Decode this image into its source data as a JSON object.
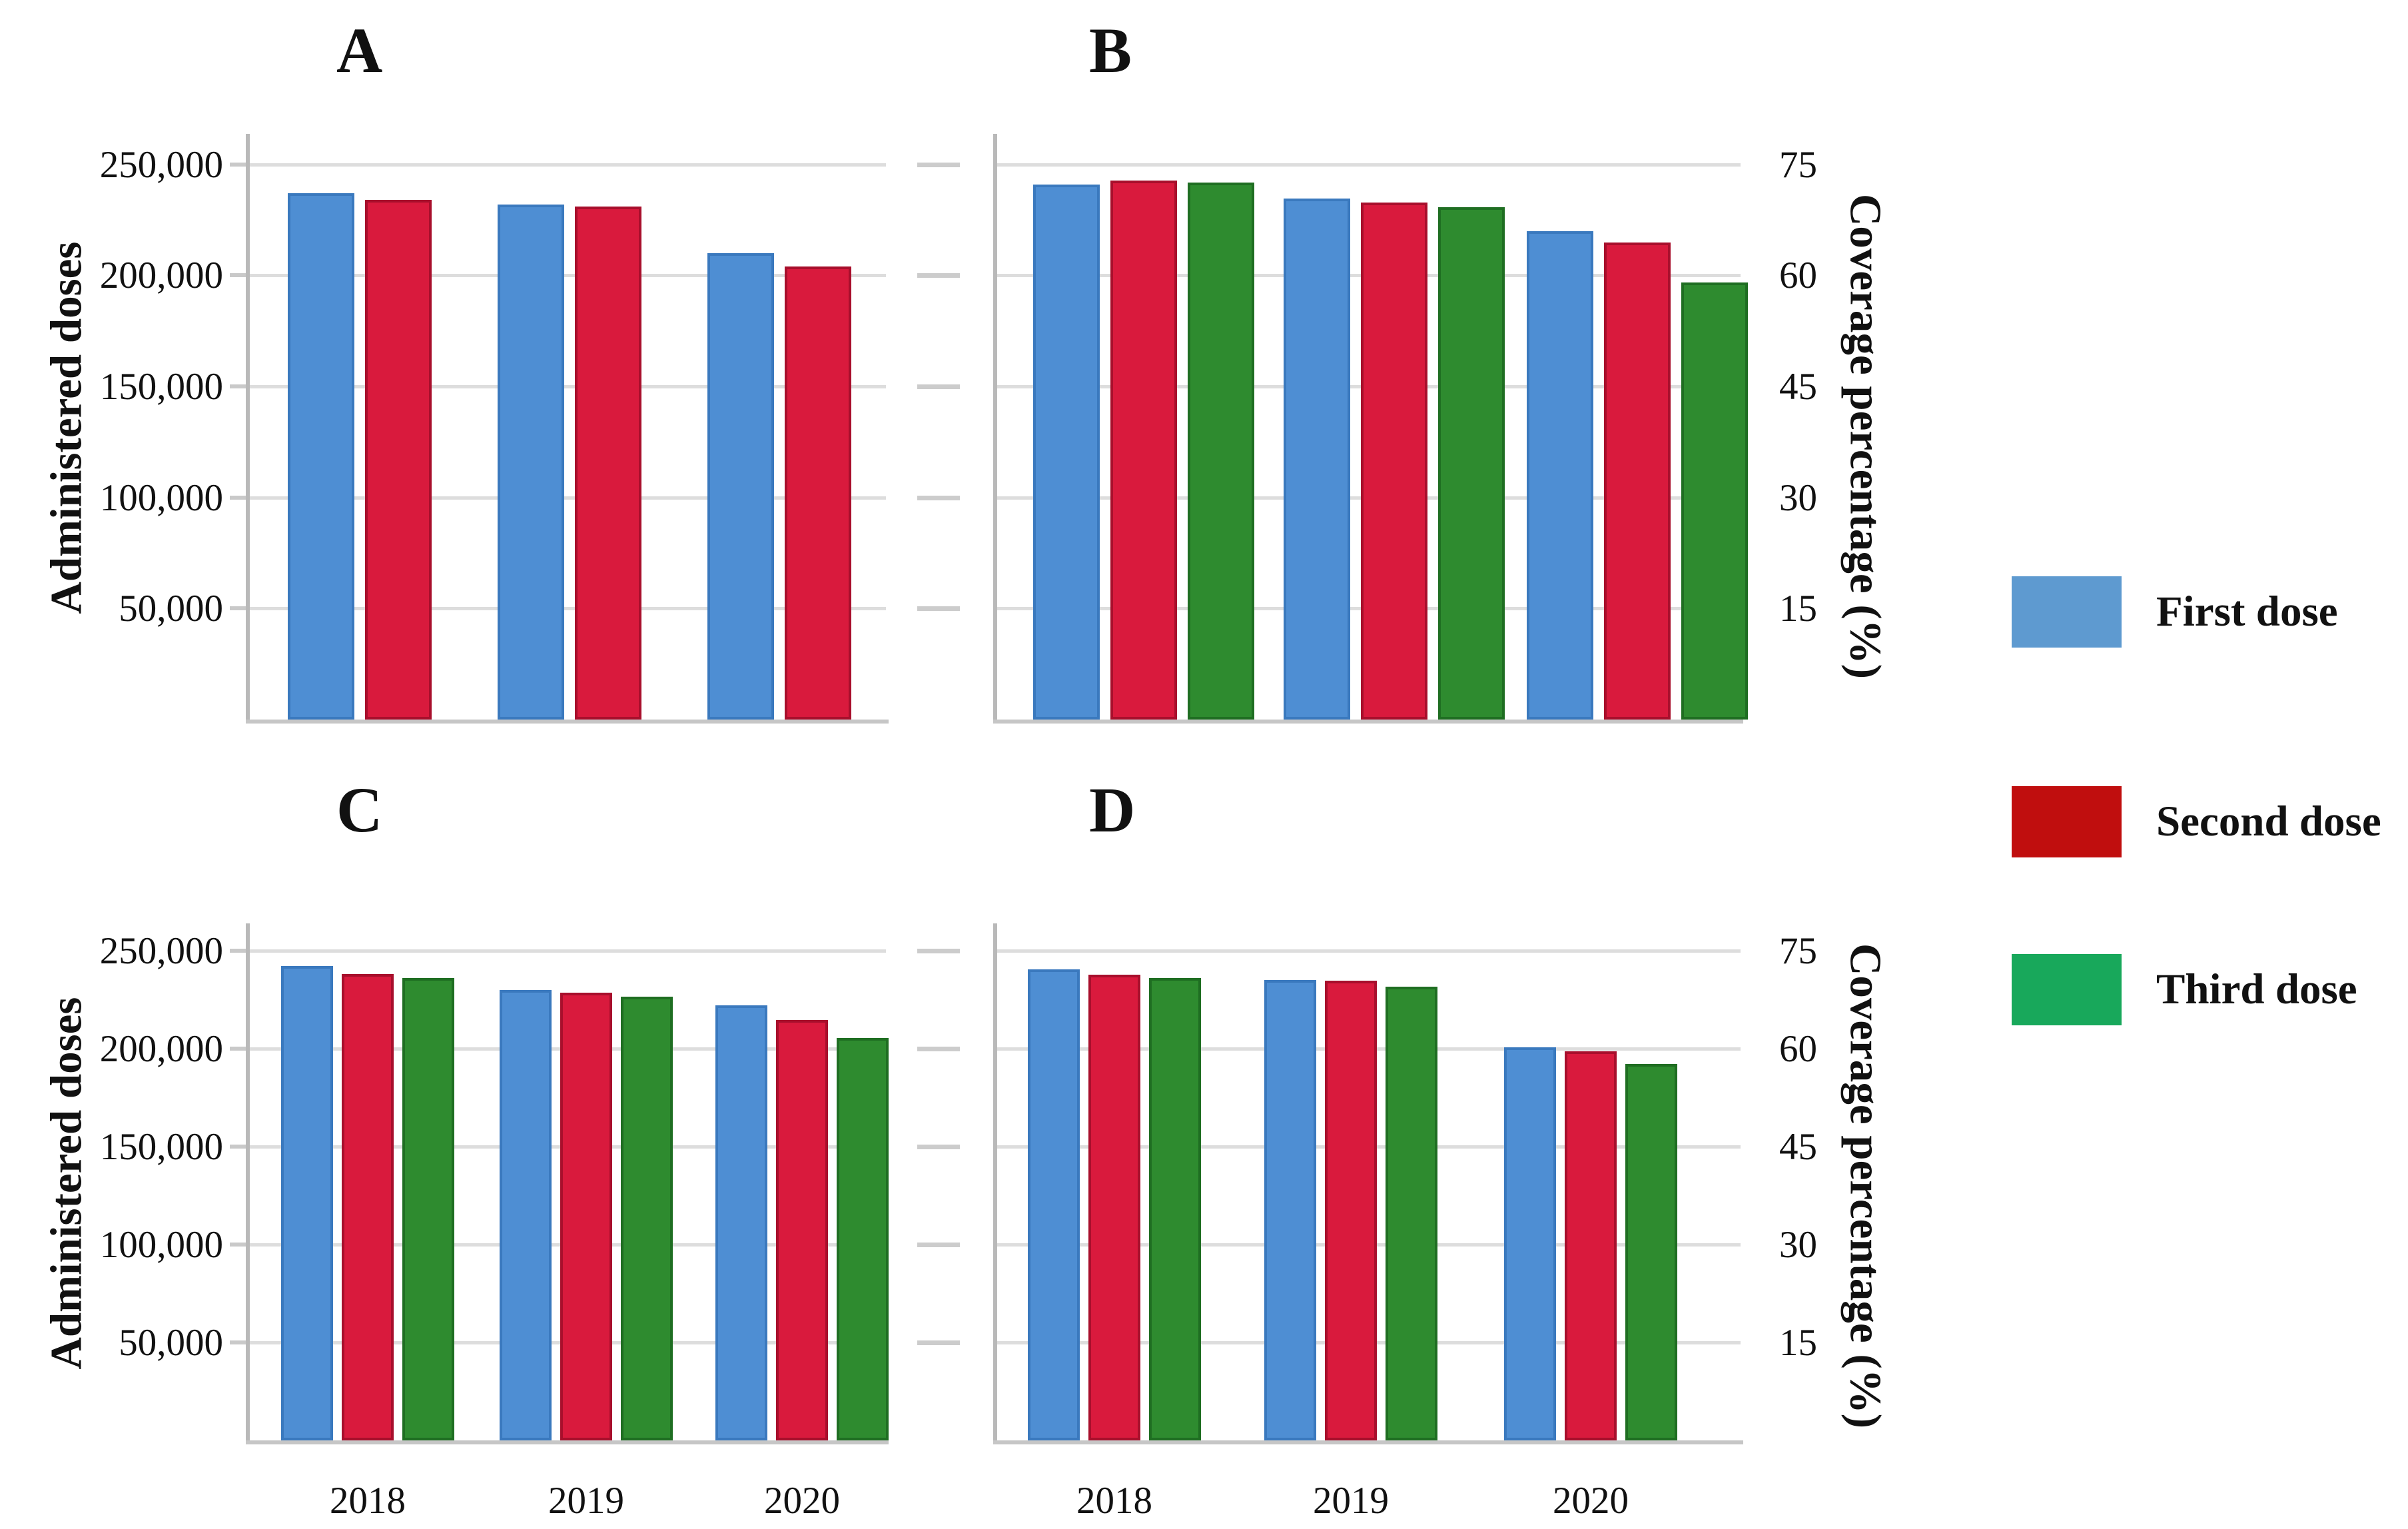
{
  "figure": {
    "background": "#ffffff"
  },
  "legend": {
    "items": [
      {
        "label": "First dose",
        "color": "#5E9AD0"
      },
      {
        "label": "Second dose",
        "color": "#C00E0E"
      },
      {
        "label": "Third dose",
        "color": "#18A85B"
      }
    ]
  },
  "chart_data": [
    {
      "id": "A",
      "type": "bar",
      "title": "A",
      "ylabel": "Administered doses",
      "axis_side": "left",
      "categories": [
        "2018",
        "2019",
        "2020"
      ],
      "show_x_labels": false,
      "grid": true,
      "ylim": [
        0,
        262500
      ],
      "yticks": [
        {
          "label": "250,000",
          "value": 250000
        },
        {
          "label": "200,000",
          "value": 200000
        },
        {
          "label": "150,000",
          "value": 150000
        },
        {
          "label": "100,000",
          "value": 100000
        },
        {
          "label": "50,000",
          "value": 50000
        }
      ],
      "series": [
        {
          "name": "First dose",
          "color": "#4E8ED3",
          "border": "#3A79BE",
          "values": [
            237000,
            232000,
            210000
          ]
        },
        {
          "name": "Second dose",
          "color": "#D91A3D",
          "border": "#A80F2C",
          "values": [
            234000,
            231000,
            204000
          ]
        }
      ]
    },
    {
      "id": "B",
      "type": "bar",
      "title": "B",
      "ylabel": "Coverage percentage (%)",
      "axis_side": "right",
      "categories": [
        "2018",
        "2019",
        "2020"
      ],
      "show_x_labels": false,
      "grid": true,
      "ylim": [
        0,
        78.75
      ],
      "yticks": [
        {
          "label": "75",
          "value": 75
        },
        {
          "label": "60",
          "value": 60
        },
        {
          "label": "45",
          "value": 45
        },
        {
          "label": "30",
          "value": 30
        },
        {
          "label": "15",
          "value": 15
        }
      ],
      "series": [
        {
          "name": "First dose",
          "color": "#4E8ED3",
          "border": "#3A79BE",
          "values": [
            72.3,
            70.4,
            66.0
          ]
        },
        {
          "name": "Second dose",
          "color": "#D91A3D",
          "border": "#A80F2C",
          "values": [
            72.8,
            69.8,
            64.4
          ]
        },
        {
          "name": "Third dose",
          "color": "#2E8B2F",
          "border": "#1F6E22",
          "values": [
            72.5,
            69.2,
            59.0
          ]
        }
      ]
    },
    {
      "id": "C",
      "type": "bar",
      "title": "C",
      "ylabel": "Administered doses",
      "axis_side": "left",
      "categories": [
        "2018",
        "2019",
        "2020"
      ],
      "show_x_labels": true,
      "grid": true,
      "ylim": [
        0,
        262500
      ],
      "yticks": [
        {
          "label": "250,000",
          "value": 250000
        },
        {
          "label": "200,000",
          "value": 200000
        },
        {
          "label": "150,000",
          "value": 150000
        },
        {
          "label": "100,000",
          "value": 100000
        },
        {
          "label": "50,000",
          "value": 50000
        }
      ],
      "series": [
        {
          "name": "First dose",
          "color": "#4E8ED3",
          "border": "#3A79BE",
          "values": [
            242000,
            230000,
            222000
          ]
        },
        {
          "name": "Second dose",
          "color": "#D91A3D",
          "border": "#A80F2C",
          "values": [
            238000,
            228500,
            214500
          ]
        },
        {
          "name": "Third dose",
          "color": "#2E8B2F",
          "border": "#1F6E22",
          "values": [
            236000,
            226500,
            205500
          ]
        }
      ]
    },
    {
      "id": "D",
      "type": "bar",
      "title": "D",
      "ylabel": "Coverage percentage (%)",
      "axis_side": "right",
      "categories": [
        "2018",
        "2019",
        "2020"
      ],
      "show_x_labels": true,
      "grid": true,
      "ylim": [
        0,
        78.75
      ],
      "yticks": [
        {
          "label": "75",
          "value": 75
        },
        {
          "label": "60",
          "value": 60
        },
        {
          "label": "45",
          "value": 45
        },
        {
          "label": "30",
          "value": 30
        },
        {
          "label": "15",
          "value": 15
        }
      ],
      "series": [
        {
          "name": "First dose",
          "color": "#4E8ED3",
          "border": "#3A79BE",
          "values": [
            72.1,
            70.5,
            60.2
          ]
        },
        {
          "name": "Second dose",
          "color": "#D91A3D",
          "border": "#A80F2C",
          "values": [
            71.3,
            70.4,
            59.6
          ]
        },
        {
          "name": "Third dose",
          "color": "#2E8B2F",
          "border": "#1F6E22",
          "values": [
            70.8,
            69.5,
            57.6
          ]
        }
      ]
    }
  ]
}
